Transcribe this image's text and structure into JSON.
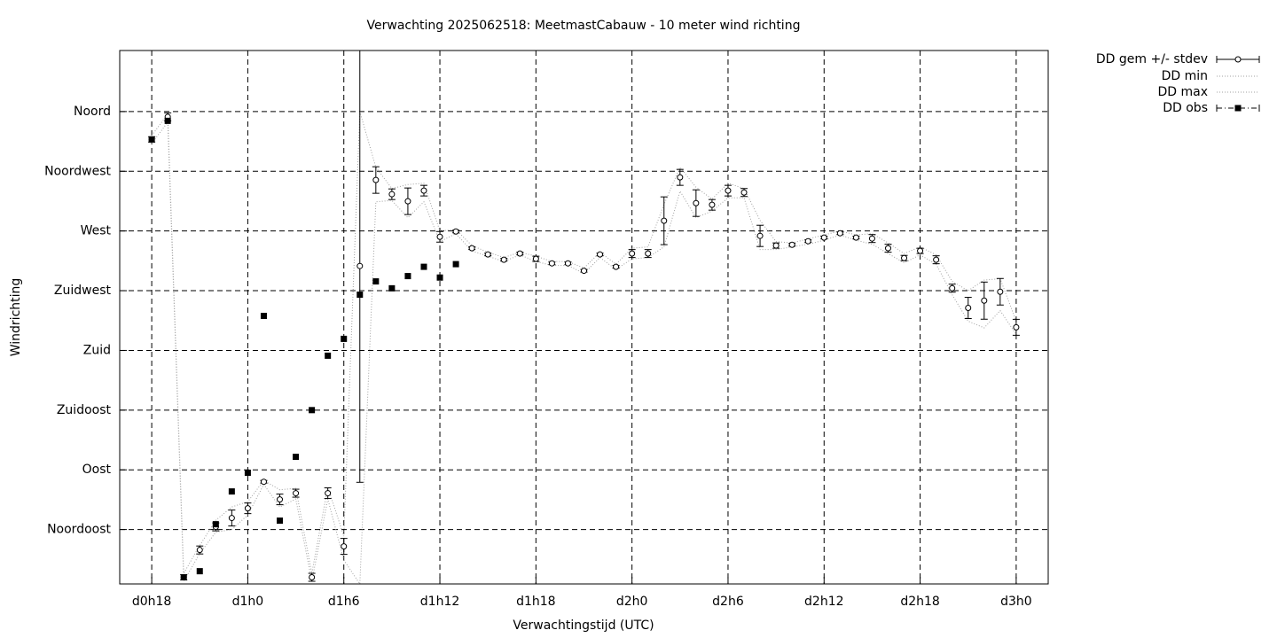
{
  "chart_data": {
    "type": "errorbar",
    "title": "Verwachting 2025062518: MeetmastCabauw - 10 meter wind richting",
    "x_label": "Verwachtingstijd (UTC)",
    "y_label": "Windrichting",
    "x": [
      18,
      19,
      20,
      21,
      22,
      23,
      24,
      25,
      26,
      27,
      28,
      29,
      30,
      31,
      32,
      33,
      34,
      35,
      36,
      37,
      38,
      39,
      40,
      41,
      42,
      43,
      44,
      45,
      46,
      47,
      48,
      49,
      50,
      51,
      52,
      53,
      54,
      55,
      56,
      57,
      58,
      59,
      60,
      61,
      62,
      63,
      64,
      65,
      66,
      67,
      68,
      69,
      70,
      71,
      72
    ],
    "xlim": [
      16,
      74
    ],
    "xticks": [
      {
        "value": 18,
        "label": "d0h18"
      },
      {
        "value": 24,
        "label": "d1h0"
      },
      {
        "value": 30,
        "label": "d1h6"
      },
      {
        "value": 36,
        "label": "d1h12"
      },
      {
        "value": 42,
        "label": "d1h18"
      },
      {
        "value": 48,
        "label": "d2h0"
      },
      {
        "value": 54,
        "label": "d2h6"
      },
      {
        "value": 60,
        "label": "d2h12"
      },
      {
        "value": 66,
        "label": "d2h18"
      },
      {
        "value": 72,
        "label": "d3h0"
      }
    ],
    "ylim": [
      4,
      406
    ],
    "yticks": [
      {
        "value": 45,
        "label": "Noordoost"
      },
      {
        "value": 90,
        "label": "Oost"
      },
      {
        "value": 135,
        "label": "Zuidoost"
      },
      {
        "value": 180,
        "label": "Zuid"
      },
      {
        "value": 225,
        "label": "Zuidwest"
      },
      {
        "value": 270,
        "label": "West"
      },
      {
        "value": 315,
        "label": "Noordwest"
      },
      {
        "value": 360,
        "label": "Noord"
      }
    ],
    "grid": true,
    "legend": "outside-top-right",
    "series": [
      {
        "name": "DD gem +/- stdev",
        "color": "#000000",
        "values": [
          339,
          356,
          9,
          29.6,
          47,
          53.7,
          61,
          81,
          67.7,
          72.4,
          9,
          72.4,
          32.3,
          243.6,
          308.4,
          297.7,
          292.4,
          300.4,
          265.6,
          269.6,
          257,
          252.3,
          248.3,
          253,
          249,
          245.6,
          245.6,
          240,
          252.3,
          243,
          253,
          253,
          277.7,
          310.4,
          291,
          289.7,
          300.4,
          299,
          266.3,
          259,
          259.6,
          262.3,
          265,
          268.3,
          265,
          264.3,
          257,
          249.6,
          255,
          248.3,
          226.9,
          212,
          217.5,
          224.2,
          197.4
        ],
        "errors": [
          2,
          3,
          2,
          3,
          3,
          6,
          4,
          1,
          4,
          3,
          3,
          4,
          6,
          163,
          10,
          4,
          10,
          4,
          4,
          1,
          1,
          1,
          1,
          1,
          2,
          1,
          1,
          1,
          1,
          1,
          3,
          3,
          18,
          6,
          10,
          4,
          4,
          3,
          8,
          2,
          1,
          1,
          1,
          1,
          1,
          3,
          3,
          2,
          2,
          3,
          3,
          8,
          14,
          10,
          6
        ]
      },
      {
        "name": "DD min",
        "color": "#a0a0a0",
        "values": [
          336,
          352,
          6,
          27,
          43,
          45,
          56,
          79,
          62,
          68,
          6,
          68,
          22,
          4,
          292,
          293,
          280,
          292,
          262,
          268,
          255,
          251,
          247,
          252,
          247,
          244,
          244,
          238,
          250,
          241,
          249,
          250,
          258,
          300,
          280,
          285,
          295,
          295,
          256,
          256,
          258,
          260,
          263,
          267,
          263,
          260,
          253,
          246,
          252,
          245,
          222,
          202,
          197,
          210,
          192
        ]
      },
      {
        "name": "DD max",
        "color": "#a0a0a0",
        "values": [
          342,
          358,
          12,
          33,
          52,
          62,
          66,
          82,
          75,
          76,
          12,
          77,
          40,
          360,
          318,
          302,
          305,
          306,
          270,
          271,
          259,
          254,
          250,
          254,
          251,
          247,
          247,
          242,
          254,
          245,
          257,
          258,
          290,
          318,
          303,
          294,
          306,
          302,
          278,
          262,
          261,
          264,
          267,
          270,
          267,
          268,
          261,
          253,
          258,
          252,
          232,
          225,
          233,
          234,
          202
        ]
      },
      {
        "name": "DD obs",
        "color": "#000000",
        "values": [
          339,
          353,
          9,
          13.6,
          49,
          73.7,
          87.8,
          206,
          51.7,
          99.8,
          135,
          176,
          188.7,
          222,
          232,
          226.8,
          236,
          243,
          234.9,
          245,
          null,
          null,
          null,
          null,
          null,
          null,
          null,
          null,
          null,
          null,
          null,
          null,
          null,
          null,
          null,
          null,
          null,
          null,
          null,
          null,
          null,
          null,
          null,
          null,
          null,
          null,
          null,
          null,
          null,
          null,
          null,
          null,
          null,
          null,
          null
        ]
      }
    ]
  }
}
